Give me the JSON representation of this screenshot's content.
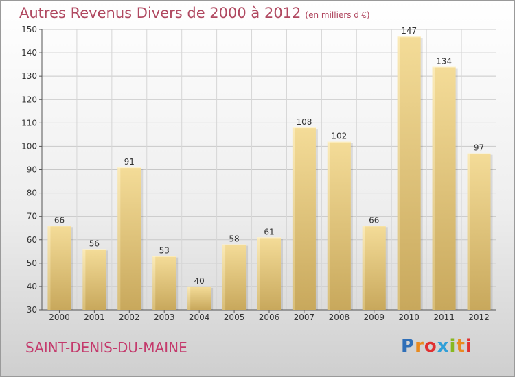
{
  "title": "Autres Revenus Divers de 2000 à 2012",
  "unit": "(en milliers d'€)",
  "commune": "SAINT-DENIS-DU-MAINE",
  "logo": {
    "letters": [
      "P",
      "r",
      "o",
      "x",
      "i",
      "t",
      "i"
    ],
    "colors": [
      "#2f6fb8",
      "#e98a1e",
      "#e03030",
      "#2f9fd8",
      "#88b820",
      "#e98a1e",
      "#e03030"
    ]
  },
  "chart_data": {
    "type": "bar",
    "categories": [
      "2000",
      "2001",
      "2002",
      "2003",
      "2004",
      "2005",
      "2006",
      "2007",
      "2008",
      "2009",
      "2010",
      "2011",
      "2012"
    ],
    "values": [
      66,
      56,
      91,
      53,
      40,
      58,
      61,
      108,
      102,
      66,
      147,
      134,
      97
    ],
    "ylim": [
      30,
      150
    ],
    "yticks": [
      30,
      40,
      50,
      60,
      70,
      80,
      90,
      100,
      110,
      120,
      130,
      140,
      150
    ],
    "grid": true,
    "bar_color": "#e6c878"
  }
}
